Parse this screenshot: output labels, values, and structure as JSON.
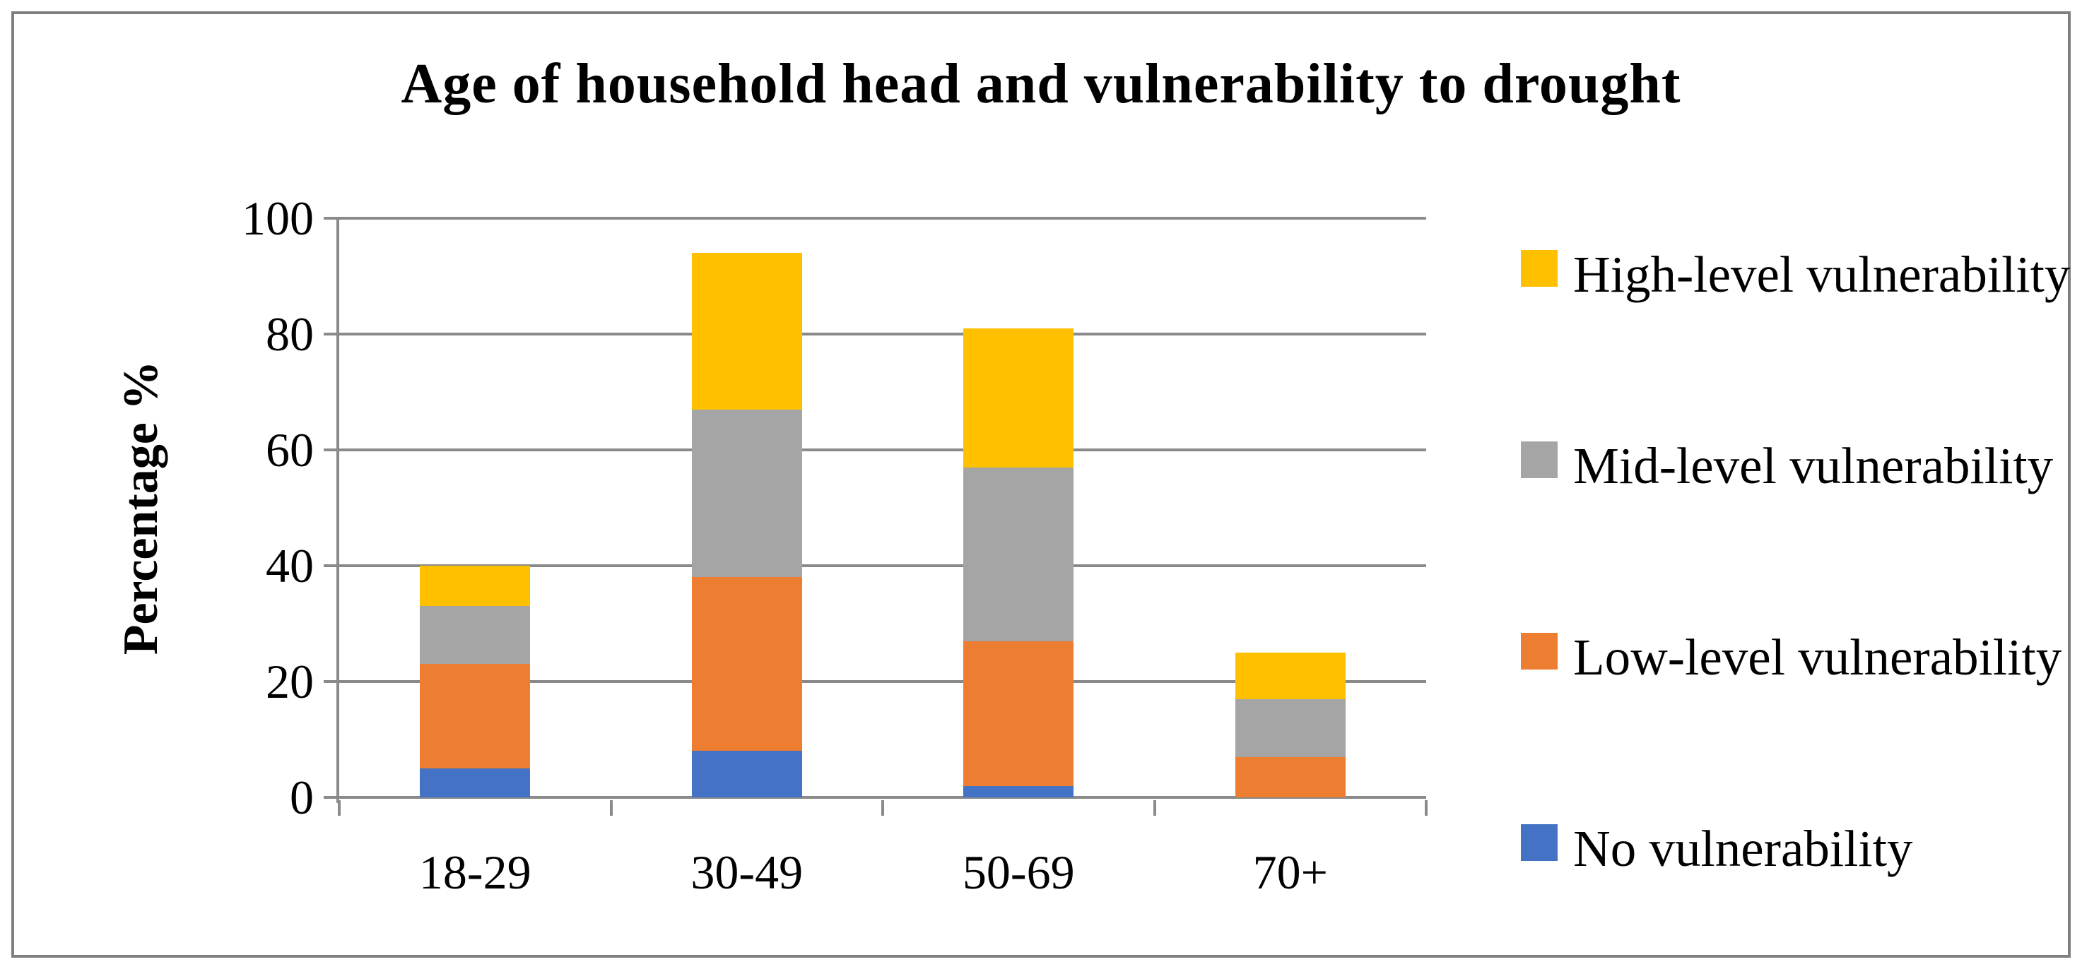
{
  "figure": {
    "background": "#ffffff",
    "border_color": "#7f7f7f"
  },
  "chart_data": {
    "type": "bar",
    "stacked": true,
    "title": "Age of household head and vulnerability to drought",
    "categories": [
      "18-29",
      "30-49",
      "50-69",
      "70+"
    ],
    "series": [
      {
        "name": "No vulnerability",
        "color": "#4472C4",
        "values": [
          5,
          8,
          2,
          0
        ]
      },
      {
        "name": "Low-level vulnerability",
        "color": "#ED7D31",
        "values": [
          18,
          30,
          25,
          7
        ]
      },
      {
        "name": "Mid-level vulnerability",
        "color": "#A5A5A5",
        "values": [
          10,
          29,
          30,
          10
        ]
      },
      {
        "name": "High-level vulnerability",
        "color": "#FFC000",
        "values": [
          7,
          27,
          24,
          8
        ]
      }
    ],
    "totals": [
      40,
      94,
      81,
      25
    ],
    "xlabel": "",
    "ylabel": "Percentage %",
    "ylim": [
      0,
      100
    ],
    "ytick_step": 20,
    "ytick_labels": [
      "0",
      "20",
      "40",
      "60",
      "80",
      "100"
    ],
    "grid": true,
    "gridline_color": "#8a8a8a",
    "axis_color": "#8a8a8a",
    "legend_position": "right",
    "legend_order_top_to_bottom": [
      "High-level vulnerability",
      "Mid-level vulnerability",
      "Low-level vulnerability",
      "No vulnerability"
    ]
  }
}
